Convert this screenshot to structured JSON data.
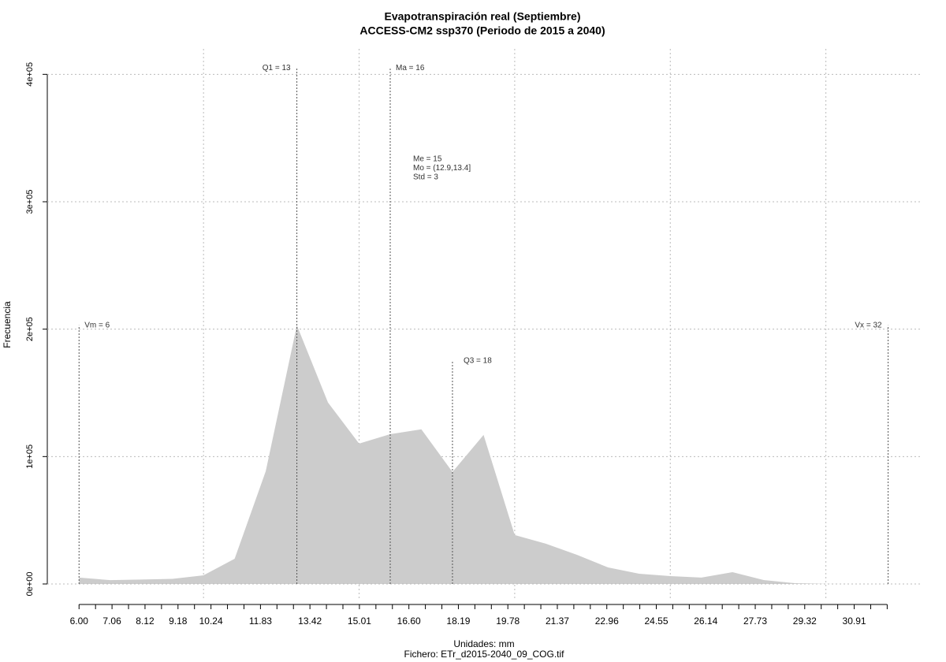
{
  "chart_data": {
    "type": "area",
    "title": "Evapotranspiración real (Septiembre)",
    "subtitle": "ACCESS-CM2 ssp370 (Periodo de 2015 a 2040)",
    "y_label": "Frecuencia",
    "x_label": "Unidades: mm",
    "file_label": "Fichero: ETr_d2015-2040_09_COG.tif",
    "color": "#cccccc",
    "x": [
      6,
      7,
      8,
      9,
      10,
      11,
      12,
      13,
      14,
      15,
      16,
      17,
      18,
      19,
      20,
      21,
      22,
      23,
      24,
      25,
      26,
      27,
      28,
      29,
      30,
      31,
      32
    ],
    "values": [
      5000,
      3000,
      3500,
      4000,
      6800,
      19800,
      88500,
      203000,
      142400,
      110200,
      117600,
      121400,
      87900,
      117000,
      38400,
      31600,
      22900,
      13000,
      8000,
      6200,
      5000,
      9300,
      3100,
      600,
      100,
      0,
      0
    ],
    "xlim": [
      4.98,
      33.1
    ],
    "ylim": [
      -13000,
      420000
    ],
    "xticks": [
      {
        "value": 6.0,
        "label": "6.00"
      },
      {
        "value": 6.53,
        "label": null
      },
      {
        "value": 7.06,
        "label": "7.06"
      },
      {
        "value": 7.59,
        "label": null
      },
      {
        "value": 8.12,
        "label": "8.12"
      },
      {
        "value": 8.65,
        "label": null
      },
      {
        "value": 9.18,
        "label": "9.18"
      },
      {
        "value": 9.71,
        "label": null
      },
      {
        "value": 10.24,
        "label": "10.24"
      },
      {
        "value": 10.77,
        "label": null
      },
      {
        "value": 11.3,
        "label": null
      },
      {
        "value": 11.83,
        "label": "11.83"
      },
      {
        "value": 12.36,
        "label": null
      },
      {
        "value": 12.89,
        "label": null
      },
      {
        "value": 13.42,
        "label": "13.42"
      },
      {
        "value": 13.95,
        "label": null
      },
      {
        "value": 14.48,
        "label": null
      },
      {
        "value": 15.01,
        "label": "15.01"
      },
      {
        "value": 15.54,
        "label": null
      },
      {
        "value": 16.07,
        "label": null
      },
      {
        "value": 16.6,
        "label": "16.60"
      },
      {
        "value": 17.13,
        "label": null
      },
      {
        "value": 17.66,
        "label": null
      },
      {
        "value": 18.19,
        "label": "18.19"
      },
      {
        "value": 18.72,
        "label": null
      },
      {
        "value": 19.25,
        "label": null
      },
      {
        "value": 19.78,
        "label": "19.78"
      },
      {
        "value": 20.31,
        "label": null
      },
      {
        "value": 20.84,
        "label": null
      },
      {
        "value": 21.37,
        "label": "21.37"
      },
      {
        "value": 21.9,
        "label": null
      },
      {
        "value": 22.43,
        "label": null
      },
      {
        "value": 22.96,
        "label": "22.96"
      },
      {
        "value": 23.49,
        "label": null
      },
      {
        "value": 24.02,
        "label": null
      },
      {
        "value": 24.55,
        "label": "24.55"
      },
      {
        "value": 25.08,
        "label": null
      },
      {
        "value": 25.61,
        "label": null
      },
      {
        "value": 26.14,
        "label": "26.14"
      },
      {
        "value": 26.67,
        "label": null
      },
      {
        "value": 27.2,
        "label": null
      },
      {
        "value": 27.73,
        "label": "27.73"
      },
      {
        "value": 28.26,
        "label": null
      },
      {
        "value": 28.79,
        "label": null
      },
      {
        "value": 29.32,
        "label": "29.32"
      },
      {
        "value": 29.85,
        "label": null
      },
      {
        "value": 30.38,
        "label": null
      },
      {
        "value": 30.91,
        "label": "30.91"
      },
      {
        "value": 31.44,
        "label": null
      },
      {
        "value": 31.97,
        "label": null
      }
    ],
    "yticks": [
      {
        "value": 0,
        "label": "0e+00"
      },
      {
        "value": 100000,
        "label": "1e+05"
      },
      {
        "value": 200000,
        "label": "2e+05"
      },
      {
        "value": 300000,
        "label": "3e+05"
      },
      {
        "value": 400000,
        "label": "4e+05"
      }
    ],
    "xgrid": [
      10,
      15,
      20,
      25,
      30
    ],
    "grid": true,
    "markers": [
      {
        "label": "Vm = 6",
        "x": 6,
        "height": 203000
      },
      {
        "label": "Q1 = 13",
        "x": 13,
        "height": 405000
      },
      {
        "label": "Ma = 16",
        "x": 16,
        "height": 405000
      },
      {
        "label": "Q3 = 18",
        "x": 18,
        "height": 175000
      },
      {
        "label": "Vx = 32",
        "x": 32,
        "height": 203000
      }
    ],
    "annotations": [
      "Me = 15",
      "Mo = (12.9,13.4]",
      "Std = 3"
    ]
  }
}
